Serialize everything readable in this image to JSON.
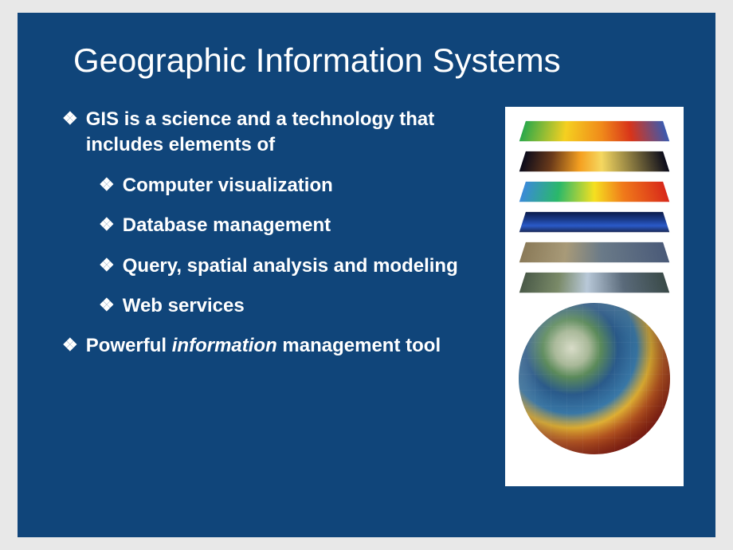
{
  "slide": {
    "background_color": "#10457a",
    "text_color": "#ffffff",
    "title": "Geographic Information Systems",
    "title_fontsize": 42,
    "body_fontsize": 24,
    "bullet_glyph": "❖",
    "bullets_l1": [
      {
        "text": "GIS is a science and a technology that includes elements of"
      },
      {
        "text_pre": "Powerful ",
        "text_italic": "information",
        "text_post": " management tool"
      }
    ],
    "bullets_l2": [
      "Computer visualization",
      "Database management",
      "Query, spatial analysis and modeling",
      "Web services"
    ],
    "image": {
      "description": "stacked-gis-data-layers-over-globe",
      "background": "#ffffff",
      "layer_colors": [
        "linear-gradient(90deg,#2aa84a 0%,#f5d020 30%,#f08a1a 55%,#d8341a 75%,#3a5ab0 100%)",
        "linear-gradient(90deg,#0a0a1a 0%,#6a3a1a 20%,#f5a020 40%,#f5d860 55%,#0a0a1a 100%)",
        "linear-gradient(90deg,#3a8ad8 0%,#2ab86a 25%,#f5e020 50%,#f07a1a 70%,#d8281a 100%)",
        "linear-gradient(180deg,#0a1a4a 0%,#1a3a8a 40%,#2a5ac8 70%,#1a2a5a 100%)",
        "linear-gradient(90deg,#8a7a58 0%,#a89a78 30%,#6a7a88 55%,#4a5a78 100%)",
        "linear-gradient(90deg,#4a5a48 0%,#7a8a68 25%,#b8c8d8 45%,#5a6a7a 70%,#3a4a48 100%)"
      ]
    }
  },
  "page_background": "#e8e8e8"
}
